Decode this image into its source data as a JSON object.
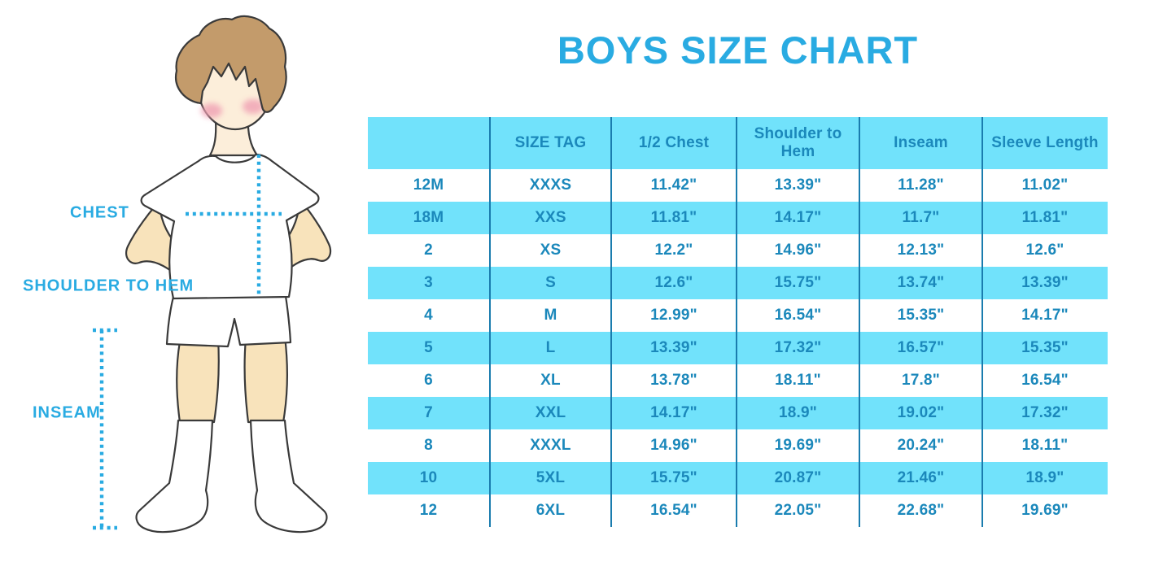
{
  "title": "BOYS SIZE CHART",
  "colors": {
    "accent": "#29ABE2",
    "cyan": "#71E2FB",
    "table_text": "#1B88BB",
    "divider": "#1A7CAE",
    "skin": "#FCEEDA",
    "skin_dark": "#F8E3BB",
    "hair": "#C39B6B",
    "cheek": "#F0A0B4",
    "outline": "#3A3A3A"
  },
  "figure": {
    "labels": {
      "chest": "CHEST",
      "shoulder_to_hem": "SHOULDER TO HEM",
      "inseam": "INSEAM"
    }
  },
  "chart_data": {
    "type": "table",
    "title": "BOYS SIZE CHART",
    "columns": [
      "",
      "SIZE TAG",
      "1/2 Chest",
      "Shoulder to Hem",
      "Inseam",
      "Sleeve Length"
    ],
    "rows": [
      [
        "12M",
        "XXXS",
        "11.42\"",
        "13.39\"",
        "11.28\"",
        "11.02\""
      ],
      [
        "18M",
        "XXS",
        "11.81\"",
        "14.17\"",
        "11.7\"",
        "11.81\""
      ],
      [
        "2",
        "XS",
        "12.2\"",
        "14.96\"",
        "12.13\"",
        "12.6\""
      ],
      [
        "3",
        "S",
        "12.6\"",
        "15.75\"",
        "13.74\"",
        "13.39\""
      ],
      [
        "4",
        "M",
        "12.99\"",
        "16.54\"",
        "15.35\"",
        "14.17\""
      ],
      [
        "5",
        "L",
        "13.39\"",
        "17.32\"",
        "16.57\"",
        "15.35\""
      ],
      [
        "6",
        "XL",
        "13.78\"",
        "18.11\"",
        "17.8\"",
        "16.54\""
      ],
      [
        "7",
        "XXL",
        "14.17\"",
        "18.9\"",
        "19.02\"",
        "17.32\""
      ],
      [
        "8",
        "XXXL",
        "14.96\"",
        "19.69\"",
        "20.24\"",
        "18.11\""
      ],
      [
        "10",
        "5XL",
        "15.75\"",
        "20.87\"",
        "21.46\"",
        "18.9\""
      ],
      [
        "12",
        "6XL",
        "16.54\"",
        "22.05\"",
        "22.68\"",
        "19.69\""
      ]
    ],
    "layout": {
      "banded_rows": true,
      "band_color": "#71E2FB",
      "grid": "vertical-only"
    }
  }
}
